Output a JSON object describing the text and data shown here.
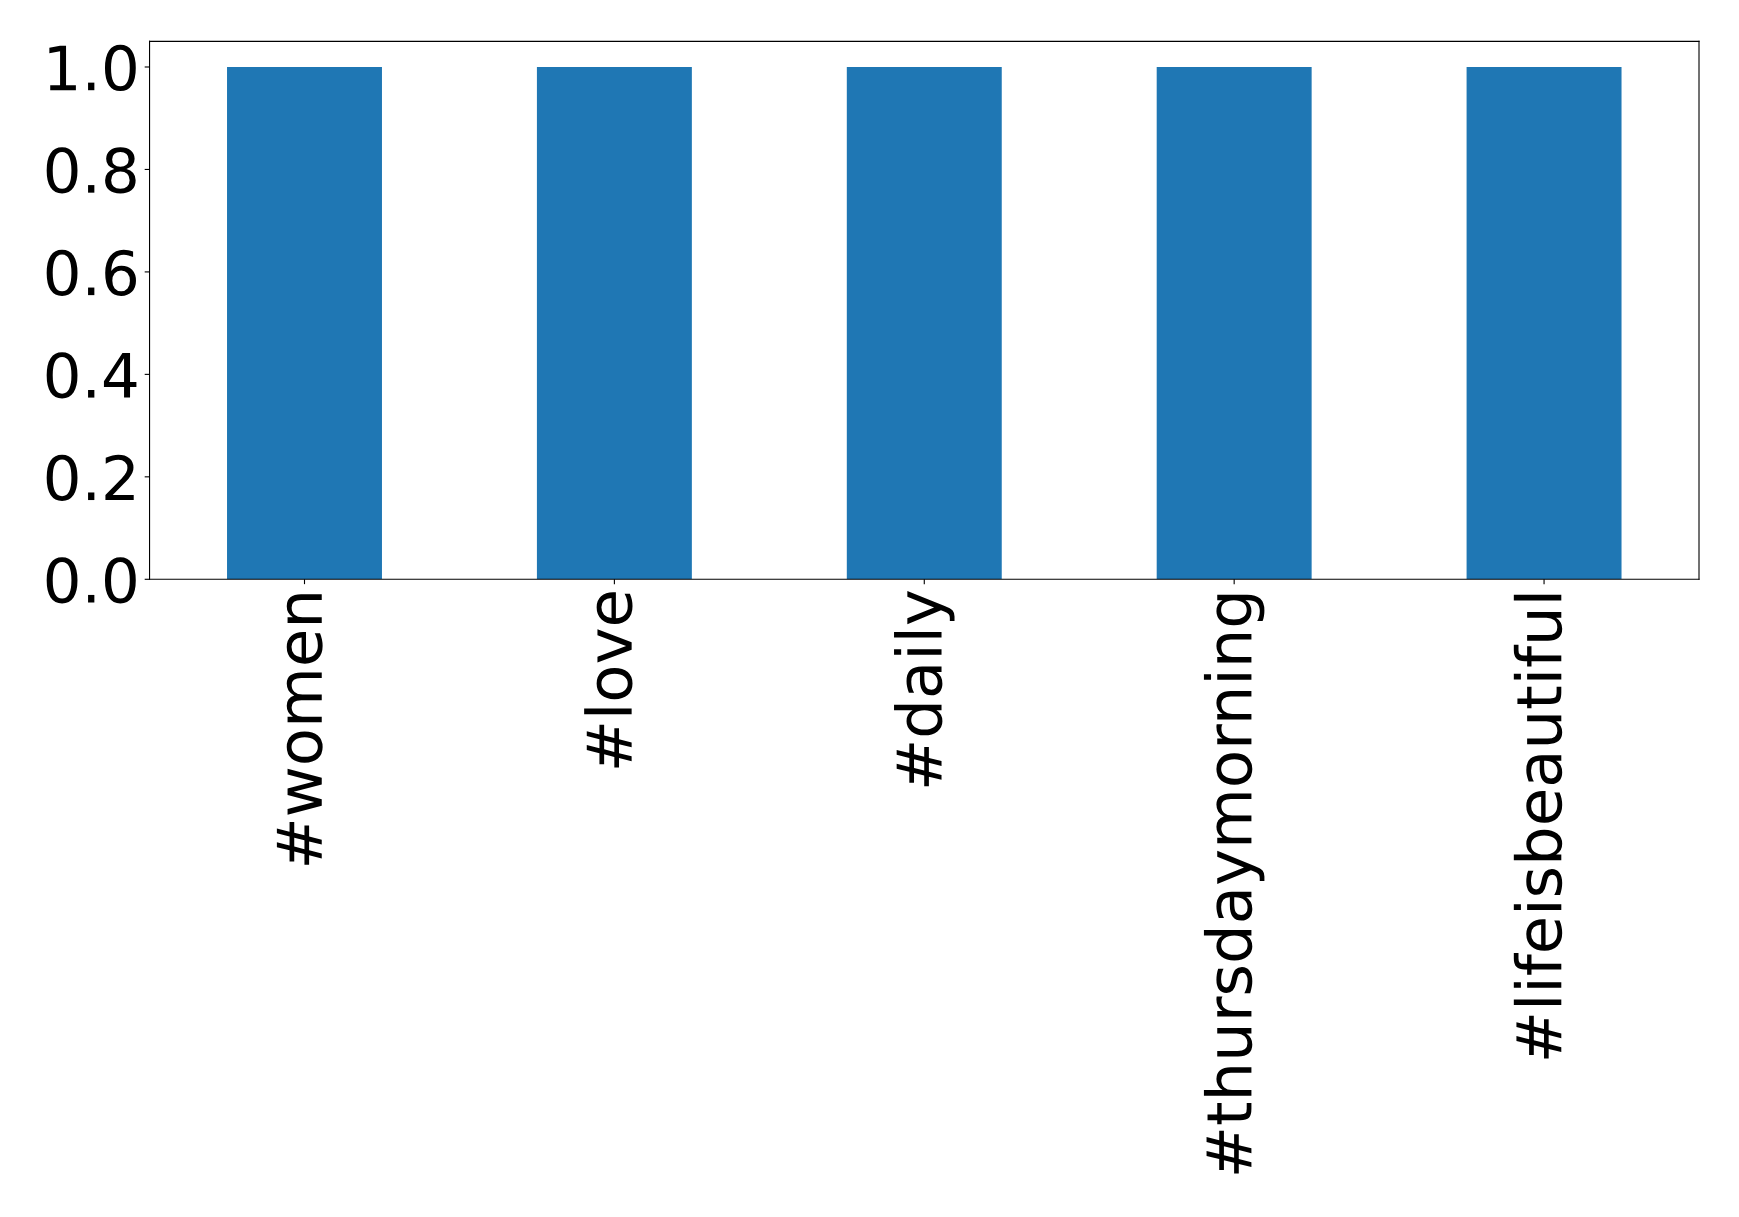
{
  "chart_data": {
    "type": "bar",
    "categories": [
      "#women",
      "#love",
      "#daily",
      "#thursdaymorning",
      "#lifeisbeautiful"
    ],
    "values": [
      1.0,
      1.0,
      1.0,
      1.0,
      1.0
    ],
    "color": "#1f77b4",
    "ylim": [
      0,
      1.05
    ],
    "yticks": [
      {
        "value": 0,
        "label": "0.0"
      },
      {
        "value": 0.2,
        "label": "0.2"
      },
      {
        "value": 0.4,
        "label": "0.4"
      },
      {
        "value": 0.6,
        "label": "0.6"
      },
      {
        "value": 0.8,
        "label": "0.8"
      },
      {
        "value": 1.0,
        "label": "1.0"
      }
    ],
    "grid": false
  }
}
